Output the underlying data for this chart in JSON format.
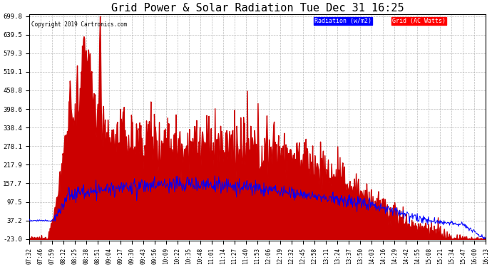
{
  "title": "Grid Power & Solar Radiation Tue Dec 31 16:25",
  "copyright": "Copyright 2019 Cartronics.com",
  "legend_radiation": "Radiation (w/m2)",
  "legend_grid": "Grid (AC Watts)",
  "yticks": [
    699.8,
    639.5,
    579.3,
    519.1,
    458.8,
    398.6,
    338.4,
    278.1,
    217.9,
    157.7,
    97.5,
    37.2,
    -23.0
  ],
  "ymin": -23.0,
  "ymax": 699.8,
  "background_color": "#ffffff",
  "plot_bg_color": "#ffffff",
  "grid_color": "#aaaaaa",
  "red_fill_color": "#cc0000",
  "blue_line_color": "#0000ff",
  "title_fontsize": 11,
  "xtick_labels": [
    "07:32",
    "07:46",
    "07:59",
    "08:12",
    "08:25",
    "08:38",
    "08:51",
    "09:04",
    "09:17",
    "09:30",
    "09:43",
    "09:56",
    "10:09",
    "10:22",
    "10:35",
    "10:48",
    "11:01",
    "11:14",
    "11:27",
    "11:40",
    "11:53",
    "12:06",
    "12:19",
    "12:32",
    "12:45",
    "12:58",
    "13:11",
    "13:24",
    "13:37",
    "13:50",
    "14:03",
    "14:16",
    "14:29",
    "14:42",
    "14:55",
    "15:08",
    "15:21",
    "15:34",
    "15:47",
    "16:00",
    "16:13"
  ]
}
